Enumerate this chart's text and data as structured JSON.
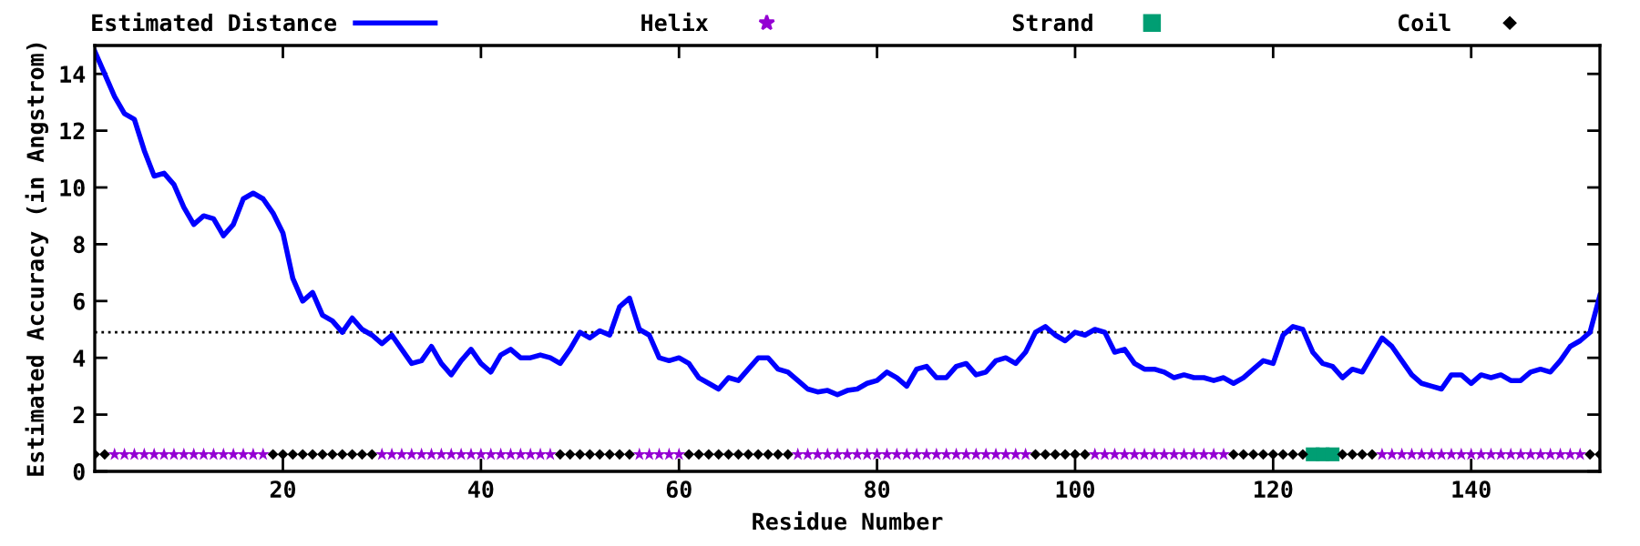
{
  "chart_data": {
    "type": "line",
    "xlabel": "Residue Number",
    "ylabel": "Estimated Accuracy (in Angstrom)",
    "xlim": [
      1,
      153
    ],
    "xticks": [
      20,
      40,
      60,
      80,
      100,
      120,
      140
    ],
    "ylim": [
      0,
      15
    ],
    "yticks": [
      0,
      2,
      4,
      6,
      8,
      10,
      12,
      14
    ],
    "grid": false,
    "legend": "top",
    "ref_lines": [
      {
        "axis": "y",
        "value": 4.9,
        "color": "#000000",
        "line_style": "dotted"
      }
    ],
    "series": [
      {
        "name": "Estimated Distance",
        "color": "#0000ff",
        "marker": "none",
        "line_style": "solid",
        "x": [
          1,
          2,
          3,
          4,
          5,
          6,
          7,
          8,
          9,
          10,
          11,
          12,
          13,
          14,
          15,
          16,
          17,
          18,
          19,
          20,
          21,
          22,
          23,
          24,
          25,
          26,
          27,
          28,
          29,
          30,
          31,
          32,
          33,
          34,
          35,
          36,
          37,
          38,
          39,
          40,
          41,
          42,
          43,
          44,
          45,
          46,
          47,
          48,
          49,
          50,
          51,
          52,
          53,
          54,
          55,
          56,
          57,
          58,
          59,
          60,
          61,
          62,
          63,
          64,
          65,
          66,
          67,
          68,
          69,
          70,
          71,
          72,
          73,
          74,
          75,
          76,
          77,
          78,
          79,
          80,
          81,
          82,
          83,
          84,
          85,
          86,
          87,
          88,
          89,
          90,
          91,
          92,
          93,
          94,
          95,
          96,
          97,
          98,
          99,
          100,
          101,
          102,
          103,
          104,
          105,
          106,
          107,
          108,
          109,
          110,
          111,
          112,
          113,
          114,
          115,
          116,
          117,
          118,
          119,
          120,
          121,
          122,
          123,
          124,
          125,
          126,
          127,
          128,
          129,
          130,
          131,
          132,
          133,
          134,
          135,
          136,
          137,
          138,
          139,
          140,
          141,
          142,
          143,
          144,
          145,
          146,
          147,
          148,
          149,
          150,
          151,
          152,
          153
        ],
        "values": [
          14.8,
          14.0,
          13.2,
          12.6,
          12.4,
          11.3,
          10.4,
          10.5,
          10.1,
          9.3,
          8.7,
          9.0,
          8.9,
          8.3,
          8.7,
          9.6,
          9.8,
          9.6,
          9.1,
          8.4,
          6.8,
          6.0,
          6.3,
          5.5,
          5.3,
          4.9,
          5.4,
          5.0,
          4.8,
          4.5,
          4.8,
          4.3,
          3.8,
          3.9,
          4.4,
          3.8,
          3.4,
          3.9,
          4.3,
          3.8,
          3.5,
          4.1,
          4.3,
          4.0,
          4.0,
          4.1,
          4.0,
          3.8,
          4.3,
          4.9,
          4.7,
          4.95,
          4.8,
          5.8,
          6.1,
          5.0,
          4.8,
          4.0,
          3.9,
          4.0,
          3.8,
          3.3,
          3.1,
          2.9,
          3.3,
          3.2,
          3.6,
          4.0,
          4.0,
          3.6,
          3.5,
          3.2,
          2.9,
          2.8,
          2.85,
          2.7,
          2.85,
          2.9,
          3.1,
          3.2,
          3.5,
          3.3,
          3.0,
          3.6,
          3.7,
          3.3,
          3.3,
          3.7,
          3.8,
          3.4,
          3.5,
          3.9,
          4.0,
          3.8,
          4.2,
          4.9,
          5.1,
          4.8,
          4.6,
          4.9,
          4.8,
          5.0,
          4.9,
          4.2,
          4.3,
          3.8,
          3.6,
          3.6,
          3.5,
          3.3,
          3.4,
          3.3,
          3.3,
          3.2,
          3.3,
          3.1,
          3.3,
          3.6,
          3.9,
          3.8,
          4.8,
          5.1,
          5.0,
          4.2,
          3.8,
          3.7,
          3.3,
          3.6,
          3.5,
          4.1,
          4.7,
          4.4,
          3.9,
          3.4,
          3.1,
          3.0,
          2.9,
          3.4,
          3.4,
          3.1,
          3.4,
          3.3,
          3.4,
          3.2,
          3.2,
          3.5,
          3.6,
          3.5,
          3.9,
          4.4,
          4.6,
          4.9,
          6.2
        ]
      },
      {
        "name": "Helix",
        "type": "scatter",
        "color": "#9400d3",
        "marker": "star",
        "x": [
          3,
          4,
          5,
          6,
          7,
          8,
          9,
          10,
          11,
          12,
          13,
          14,
          15,
          16,
          17,
          18,
          30,
          31,
          32,
          33,
          34,
          35,
          36,
          37,
          38,
          39,
          40,
          41,
          42,
          43,
          44,
          45,
          46,
          47,
          56,
          57,
          58,
          59,
          60,
          72,
          73,
          74,
          75,
          76,
          77,
          78,
          79,
          80,
          81,
          82,
          83,
          84,
          85,
          86,
          87,
          88,
          89,
          90,
          91,
          92,
          93,
          94,
          95,
          102,
          103,
          104,
          105,
          106,
          107,
          108,
          109,
          110,
          111,
          112,
          113,
          114,
          115,
          131,
          132,
          133,
          134,
          135,
          136,
          137,
          138,
          139,
          140,
          141,
          142,
          143,
          144,
          145,
          146,
          147,
          148,
          149,
          150,
          151
        ],
        "values": [
          0.6,
          0.6,
          0.6,
          0.6,
          0.6,
          0.6,
          0.6,
          0.6,
          0.6,
          0.6,
          0.6,
          0.6,
          0.6,
          0.6,
          0.6,
          0.6,
          0.6,
          0.6,
          0.6,
          0.6,
          0.6,
          0.6,
          0.6,
          0.6,
          0.6,
          0.6,
          0.6,
          0.6,
          0.6,
          0.6,
          0.6,
          0.6,
          0.6,
          0.6,
          0.6,
          0.6,
          0.6,
          0.6,
          0.6,
          0.6,
          0.6,
          0.6,
          0.6,
          0.6,
          0.6,
          0.6,
          0.6,
          0.6,
          0.6,
          0.6,
          0.6,
          0.6,
          0.6,
          0.6,
          0.6,
          0.6,
          0.6,
          0.6,
          0.6,
          0.6,
          0.6,
          0.6,
          0.6,
          0.6,
          0.6,
          0.6,
          0.6,
          0.6,
          0.6,
          0.6,
          0.6,
          0.6,
          0.6,
          0.6,
          0.6,
          0.6,
          0.6,
          0.6,
          0.6,
          0.6,
          0.6,
          0.6,
          0.6,
          0.6,
          0.6,
          0.6,
          0.6,
          0.6,
          0.6,
          0.6,
          0.6,
          0.6,
          0.6,
          0.6,
          0.6,
          0.6,
          0.6,
          0.6
        ]
      },
      {
        "name": "Strand",
        "type": "scatter",
        "color": "#009e73",
        "marker": "square",
        "x": [
          124,
          125,
          126
        ],
        "values": [
          0.6,
          0.6,
          0.6
        ]
      },
      {
        "name": "Coil",
        "type": "scatter",
        "color": "#000000",
        "marker": "diamond",
        "x": [
          1,
          2,
          19,
          20,
          21,
          22,
          23,
          24,
          25,
          26,
          27,
          28,
          29,
          48,
          49,
          50,
          51,
          52,
          53,
          54,
          55,
          61,
          62,
          63,
          64,
          65,
          66,
          67,
          68,
          69,
          70,
          71,
          96,
          97,
          98,
          99,
          100,
          101,
          116,
          117,
          118,
          119,
          120,
          121,
          122,
          123,
          127,
          128,
          129,
          130,
          152,
          153
        ],
        "values": [
          0.6,
          0.6,
          0.6,
          0.6,
          0.6,
          0.6,
          0.6,
          0.6,
          0.6,
          0.6,
          0.6,
          0.6,
          0.6,
          0.6,
          0.6,
          0.6,
          0.6,
          0.6,
          0.6,
          0.6,
          0.6,
          0.6,
          0.6,
          0.6,
          0.6,
          0.6,
          0.6,
          0.6,
          0.6,
          0.6,
          0.6,
          0.6,
          0.6,
          0.6,
          0.6,
          0.6,
          0.6,
          0.6,
          0.6,
          0.6,
          0.6,
          0.6,
          0.6,
          0.6,
          0.6,
          0.6,
          0.6,
          0.6,
          0.6,
          0.6,
          0.6,
          0.6
        ]
      }
    ]
  }
}
